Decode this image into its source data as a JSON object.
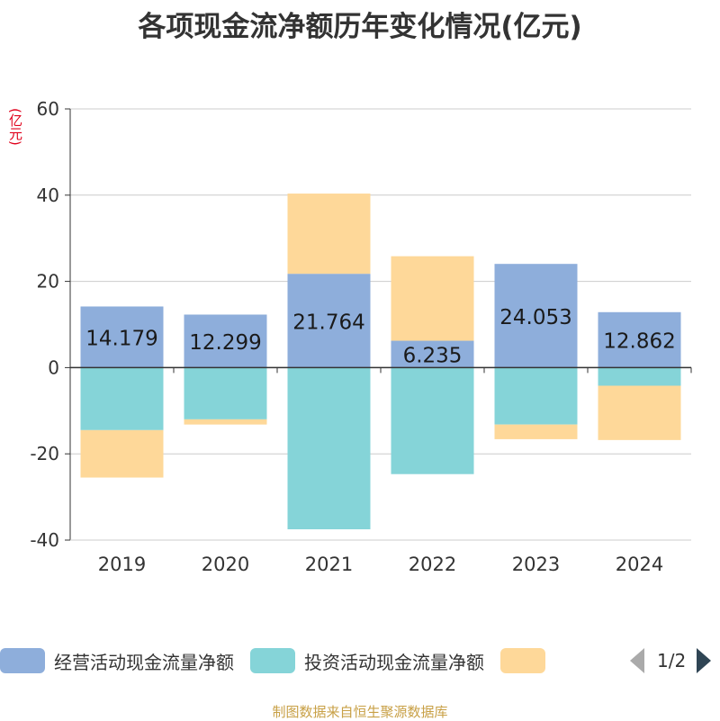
{
  "page": {
    "title": "各项现金流净额历年变化情况(亿元)",
    "y_unit": "(亿元)",
    "source": "制图数据来自恒生聚源数据库",
    "pager": "1/2"
  },
  "colors": {
    "operating": "#8eaedb",
    "investing": "#85d4d8",
    "financing": "#fed899",
    "axis": "#333333",
    "grid": "#cccccc"
  },
  "legend": [
    {
      "label": "经营活动现金流量净额",
      "color": "#8eaedb"
    },
    {
      "label": "投资活动现金流量净额",
      "color": "#85d4d8"
    },
    {
      "label": "",
      "color": "#fed899"
    }
  ],
  "chart_data": {
    "type": "bar",
    "stacked": true,
    "title": "各项现金流净额历年变化情况(亿元)",
    "ylabel": "(亿元)",
    "categories": [
      "2019",
      "2020",
      "2021",
      "2022",
      "2023",
      "2024"
    ],
    "ylim": [
      -40,
      60
    ],
    "yticks": [
      60,
      40,
      20,
      0,
      -20,
      -40
    ],
    "grid": true,
    "legend_position": "bottom",
    "series": [
      {
        "name": "经营活动现金流量净额",
        "values": [
          14.179,
          12.299,
          21.764,
          6.235,
          24.053,
          12.862
        ],
        "labels": [
          "14.179",
          "12.299",
          "21.764",
          "6.235",
          "24.053",
          "12.862"
        ]
      },
      {
        "name": "投资活动现金流量净额",
        "values": [
          -14.5,
          -12.0,
          -37.5,
          -24.7,
          -13.2,
          -4.2
        ]
      },
      {
        "values": [
          -11.0,
          -1.2,
          18.6,
          19.6,
          -3.4,
          -12.6
        ]
      }
    ]
  }
}
